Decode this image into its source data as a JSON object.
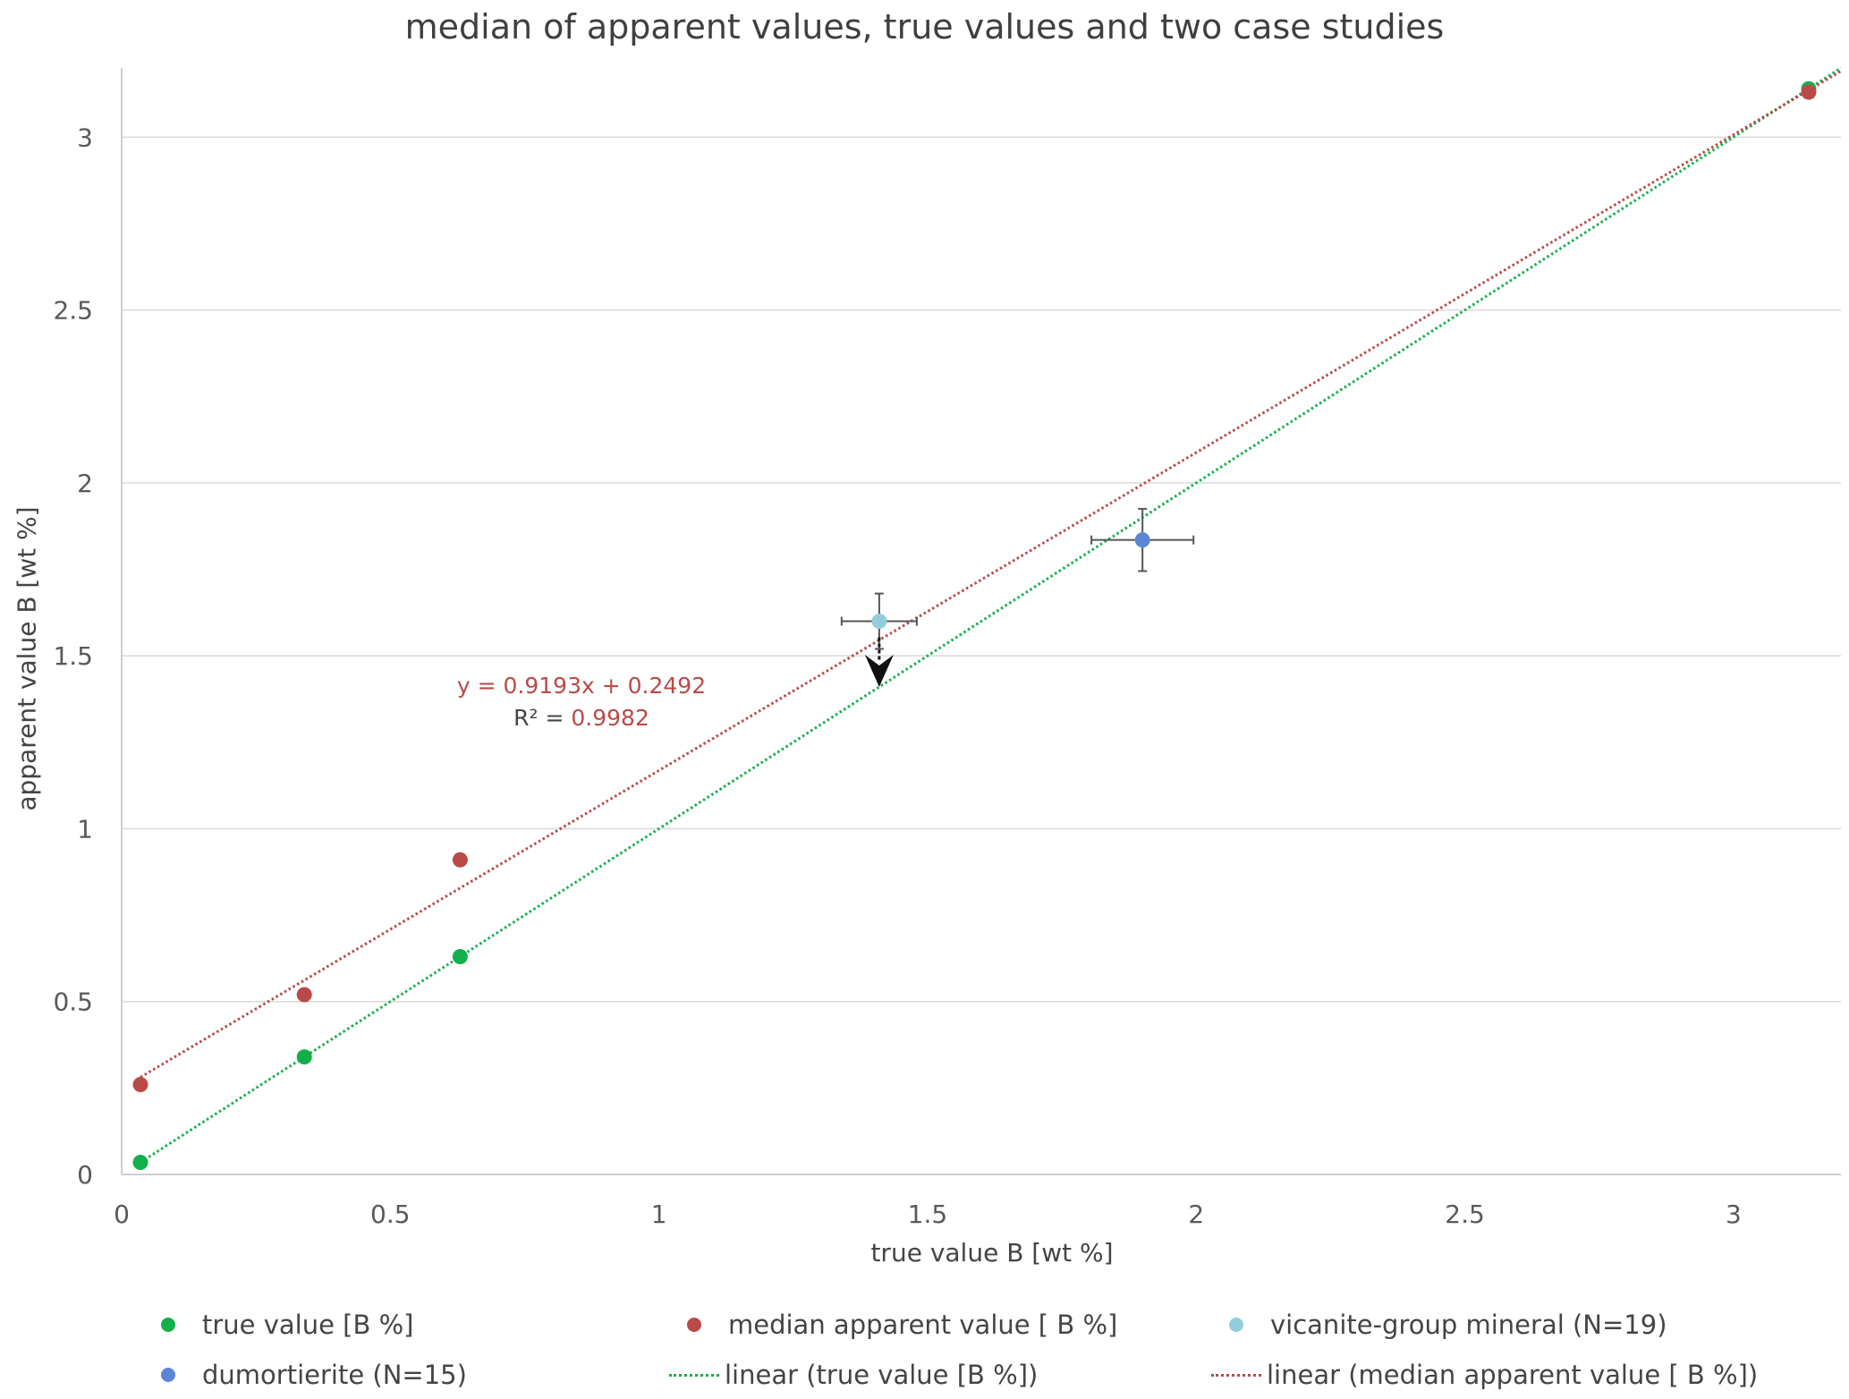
{
  "chart_data": {
    "type": "scatter",
    "title": "median of apparent values, true values and two case studies",
    "xlabel": "true value B [wt %]",
    "ylabel": "apparent value B [wt %]",
    "xlim": [
      0,
      3.2
    ],
    "ylim": [
      0,
      3.2
    ],
    "x_ticks": [
      "0",
      "0.5",
      "1",
      "1.5",
      "2",
      "2.5",
      "3"
    ],
    "y_ticks": [
      "0",
      "0.5",
      "1",
      "1.5",
      "2",
      "2.5",
      "3"
    ],
    "grid": "horizontal",
    "legend_position": "bottom",
    "colors": {
      "true_value": "#12b04a",
      "median_apparent": "#b94a48",
      "vicanite": "#93cddd",
      "dumortierite": "#5b86d6",
      "error_bar": "#555555",
      "arrow": "#111111"
    },
    "series": [
      {
        "name": "true value [B %]",
        "key": "true_value",
        "kind": "points",
        "points": [
          [
            0.035,
            0.035
          ],
          [
            0.34,
            0.34
          ],
          [
            0.63,
            0.63
          ],
          [
            3.14,
            3.14
          ]
        ]
      },
      {
        "name": "median apparent value [ B %]",
        "key": "median_apparent",
        "kind": "points",
        "points": [
          [
            0.035,
            0.26
          ],
          [
            0.34,
            0.52
          ],
          [
            0.63,
            0.91
          ],
          [
            3.14,
            3.13
          ]
        ]
      },
      {
        "name": "vicanite-group mineral (N=19)",
        "key": "vicanite",
        "kind": "points_errorbars",
        "points": [
          [
            1.41,
            1.6
          ]
        ],
        "x_err": 0.07,
        "y_err": 0.08
      },
      {
        "name": "dumortierite (N=15)",
        "key": "dumortierite",
        "kind": "points_errorbars",
        "points": [
          [
            1.9,
            1.835
          ]
        ],
        "x_err": 0.095,
        "y_err": 0.09
      },
      {
        "name": "linear (true value [B %])",
        "key": "true_value",
        "kind": "trendline",
        "slope": 1.0,
        "intercept": 0.0,
        "x_range": [
          0.035,
          3.2
        ]
      },
      {
        "name": "linear (median apparent value [ B %])",
        "key": "median_apparent",
        "kind": "trendline",
        "slope": 0.9193,
        "intercept": 0.2492,
        "x_range": [
          0.035,
          3.2
        ]
      }
    ],
    "annotations": {
      "equation": "y = 0.9193x + 0.2492",
      "r2_prefix": "R² = ",
      "r2_value": "0.9982",
      "arrow_from": [
        1.41,
        1.6
      ],
      "arrow_to": [
        1.41,
        1.41
      ]
    }
  }
}
